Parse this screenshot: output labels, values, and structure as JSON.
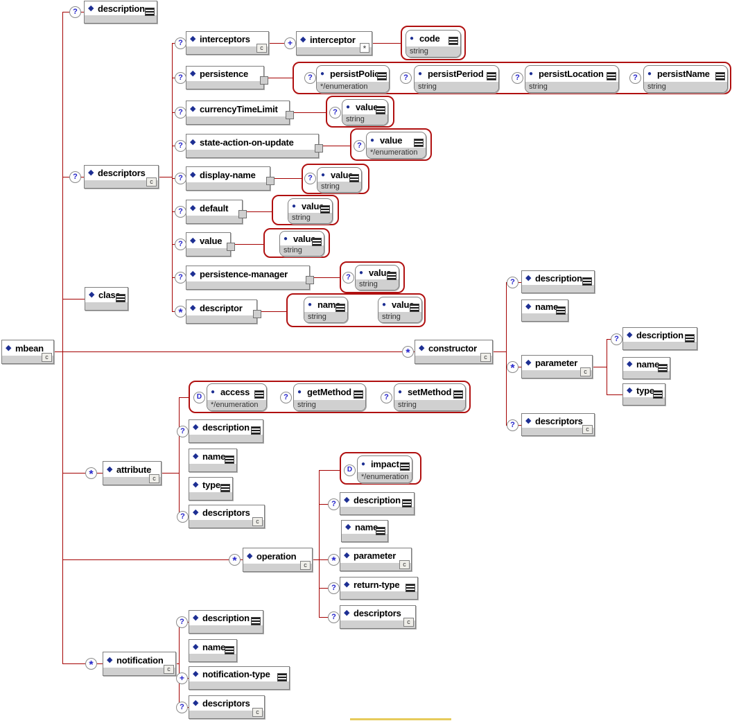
{
  "colors": {
    "connector_line": "#a40000",
    "group_border": "#b01010",
    "node_band": "#d0d0d0",
    "icon_blue": "#1d2f93",
    "occurrence_glyph": "#2424cc",
    "highlight": "#e7cb5a"
  },
  "nodes": [
    {
      "id": "mbean",
      "label": "mbean",
      "kind": "element",
      "parent": null,
      "icons": [
        "complex-content"
      ]
    },
    {
      "id": "description",
      "label": "description",
      "kind": "element",
      "parent": "mbean",
      "occurrence": "?",
      "icons": [
        "annotation"
      ]
    },
    {
      "id": "descriptors",
      "label": "descriptors",
      "kind": "element",
      "parent": "mbean",
      "occurrence": "?",
      "icons": [
        "complex-content"
      ]
    },
    {
      "id": "class",
      "label": "class",
      "kind": "element",
      "parent": "mbean",
      "icons": [
        "annotation"
      ]
    },
    {
      "id": "constructor",
      "label": "constructor",
      "kind": "element",
      "parent": "mbean",
      "occurrence": "*",
      "icons": [
        "complex-content"
      ]
    },
    {
      "id": "attribute",
      "label": "attribute",
      "kind": "element",
      "parent": "mbean",
      "occurrence": "*",
      "icons": [
        "complex-content"
      ]
    },
    {
      "id": "operation",
      "label": "operation",
      "kind": "element",
      "parent": "mbean",
      "occurrence": "*",
      "icons": [
        "complex-content"
      ]
    },
    {
      "id": "notification",
      "label": "notification",
      "kind": "element",
      "parent": "mbean",
      "occurrence": "*",
      "icons": [
        "complex-content"
      ]
    },
    {
      "id": "interceptors",
      "label": "interceptors",
      "kind": "element",
      "parent": "descriptors",
      "occurrence": "?",
      "icons": [
        "complex-content"
      ]
    },
    {
      "id": "interceptor",
      "label": "interceptor",
      "kind": "element",
      "parent": "interceptors",
      "occurrence": "+",
      "icons": [
        "reference"
      ]
    },
    {
      "id": "code",
      "label": "code",
      "kind": "attribute",
      "datatype": "string",
      "parent": "interceptor",
      "icons": [
        "annotation"
      ]
    },
    {
      "id": "persistence",
      "label": "persistence",
      "kind": "element",
      "parent": "descriptors",
      "occurrence": "?",
      "handle": true
    },
    {
      "id": "persistPolicy",
      "label": "persistPolicy",
      "kind": "attribute",
      "datatype": "*/enumeration",
      "parent": "persistence",
      "occurrence": "?",
      "icons": [
        "annotation"
      ]
    },
    {
      "id": "persistPeriod",
      "label": "persistPeriod",
      "kind": "attribute",
      "datatype": "string",
      "parent": "persistence",
      "occurrence": "?",
      "icons": [
        "annotation"
      ]
    },
    {
      "id": "persistLocation",
      "label": "persistLocation",
      "kind": "attribute",
      "datatype": "string",
      "parent": "persistence",
      "occurrence": "?",
      "icons": [
        "annotation"
      ]
    },
    {
      "id": "persistName",
      "label": "persistName",
      "kind": "attribute",
      "datatype": "string",
      "parent": "persistence",
      "occurrence": "?",
      "icons": [
        "annotation"
      ]
    },
    {
      "id": "currencyTimeLimit",
      "label": "currencyTimeLimit",
      "kind": "element",
      "parent": "descriptors",
      "occurrence": "?",
      "handle": true
    },
    {
      "id": "currencyTimeLimit-value",
      "label": "value",
      "kind": "attribute",
      "datatype": "string",
      "parent": "currencyTimeLimit",
      "occurrence": "?",
      "icons": [
        "annotation"
      ]
    },
    {
      "id": "state-action-on-update",
      "label": "state-action-on-update",
      "kind": "element",
      "parent": "descriptors",
      "occurrence": "?",
      "handle": true
    },
    {
      "id": "state-action-value",
      "label": "value",
      "kind": "attribute",
      "datatype": "*/enumeration",
      "parent": "state-action-on-update",
      "occurrence": "?",
      "icons": [
        "annotation"
      ]
    },
    {
      "id": "display-name",
      "label": "display-name",
      "kind": "element",
      "parent": "descriptors",
      "occurrence": "?",
      "handle": true
    },
    {
      "id": "display-name-value",
      "label": "value",
      "kind": "attribute",
      "datatype": "string",
      "parent": "display-name",
      "occurrence": "?",
      "icons": [
        "annotation"
      ]
    },
    {
      "id": "default",
      "label": "default",
      "kind": "element",
      "parent": "descriptors",
      "occurrence": "?",
      "handle": true
    },
    {
      "id": "default-value",
      "label": "value",
      "kind": "attribute",
      "datatype": "string",
      "parent": "default",
      "icons": [
        "annotation"
      ]
    },
    {
      "id": "value",
      "label": "value",
      "kind": "element",
      "parent": "descriptors",
      "occurrence": "?",
      "handle": true
    },
    {
      "id": "value-value",
      "label": "value",
      "kind": "attribute",
      "datatype": "string",
      "parent": "value",
      "icons": [
        "annotation"
      ]
    },
    {
      "id": "persistence-manager",
      "label": "persistence-manager",
      "kind": "element",
      "parent": "descriptors",
      "occurrence": "?",
      "handle": true
    },
    {
      "id": "persistence-manager-value",
      "label": "value",
      "kind": "attribute",
      "datatype": "string",
      "parent": "persistence-manager",
      "occurrence": "?",
      "icons": [
        "annotation"
      ]
    },
    {
      "id": "descriptor",
      "label": "descriptor",
      "kind": "element",
      "parent": "descriptors",
      "occurrence": "*",
      "handle": true
    },
    {
      "id": "descriptor-name",
      "label": "name",
      "kind": "attribute",
      "datatype": "string",
      "parent": "descriptor",
      "icons": [
        "annotation"
      ]
    },
    {
      "id": "descriptor-value",
      "label": "value",
      "kind": "attribute",
      "datatype": "string",
      "parent": "descriptor",
      "icons": [
        "annotation"
      ]
    },
    {
      "id": "constructor-description",
      "label": "description",
      "kind": "element",
      "parent": "constructor",
      "occurrence": "?",
      "icons": [
        "annotation"
      ]
    },
    {
      "id": "constructor-name",
      "label": "name",
      "kind": "element",
      "parent": "constructor",
      "icons": [
        "annotation"
      ]
    },
    {
      "id": "parameter",
      "label": "parameter",
      "kind": "element",
      "parent": "constructor",
      "occurrence": "*",
      "icons": [
        "complex-content"
      ]
    },
    {
      "id": "parameter-description",
      "label": "description",
      "kind": "element",
      "parent": "parameter",
      "occurrence": "?",
      "icons": [
        "annotation"
      ]
    },
    {
      "id": "parameter-name",
      "label": "name",
      "kind": "element",
      "parent": "parameter",
      "icons": [
        "annotation"
      ]
    },
    {
      "id": "parameter-type",
      "label": "type",
      "kind": "element",
      "parent": "parameter",
      "icons": [
        "annotation"
      ]
    },
    {
      "id": "constructor-descriptors",
      "label": "descriptors",
      "kind": "element",
      "parent": "constructor",
      "occurrence": "?",
      "icons": [
        "complex-content"
      ]
    },
    {
      "id": "access",
      "label": "access",
      "kind": "attribute",
      "datatype": "*/enumeration",
      "parent": "attribute",
      "occurrence": "D",
      "icons": [
        "annotation"
      ]
    },
    {
      "id": "getMethod",
      "label": "getMethod",
      "kind": "attribute",
      "datatype": "string",
      "parent": "attribute",
      "occurrence": "?",
      "icons": [
        "annotation"
      ]
    },
    {
      "id": "setMethod",
      "label": "setMethod",
      "kind": "attribute",
      "datatype": "string",
      "parent": "attribute",
      "occurrence": "?",
      "icons": [
        "annotation"
      ]
    },
    {
      "id": "attribute-description",
      "label": "description",
      "kind": "element",
      "parent": "attribute",
      "occurrence": "?",
      "icons": [
        "annotation"
      ]
    },
    {
      "id": "attribute-name",
      "label": "name",
      "kind": "element",
      "parent": "attribute",
      "icons": [
        "annotation"
      ]
    },
    {
      "id": "attribute-type",
      "label": "type",
      "kind": "element",
      "parent": "attribute",
      "icons": [
        "annotation"
      ]
    },
    {
      "id": "attribute-descriptors",
      "label": "descriptors",
      "kind": "element",
      "parent": "attribute",
      "occurrence": "?",
      "icons": [
        "complex-content"
      ]
    },
    {
      "id": "impact",
      "label": "impact",
      "kind": "attribute",
      "datatype": "*/enumeration",
      "parent": "operation",
      "occurrence": "D",
      "icons": [
        "annotation"
      ]
    },
    {
      "id": "operation-description",
      "label": "description",
      "kind": "element",
      "parent": "operation",
      "occurrence": "?",
      "icons": [
        "annotation"
      ]
    },
    {
      "id": "operation-name",
      "label": "name",
      "kind": "element",
      "parent": "operation",
      "icons": [
        "annotation"
      ]
    },
    {
      "id": "operation-parameter",
      "label": "parameter",
      "kind": "element",
      "parent": "operation",
      "occurrence": "*",
      "icons": [
        "complex-content"
      ]
    },
    {
      "id": "return-type",
      "label": "return-type",
      "kind": "element",
      "parent": "operation",
      "occurrence": "?",
      "icons": [
        "annotation"
      ]
    },
    {
      "id": "operation-descriptors",
      "label": "descriptors",
      "kind": "element",
      "parent": "operation",
      "occurrence": "?",
      "icons": [
        "complex-content"
      ]
    },
    {
      "id": "notification-description",
      "label": "description",
      "kind": "element",
      "parent": "notification",
      "occurrence": "?",
      "icons": [
        "annotation"
      ]
    },
    {
      "id": "notification-name",
      "label": "name",
      "kind": "element",
      "parent": "notification",
      "icons": [
        "annotation"
      ]
    },
    {
      "id": "notification-type",
      "label": "notification-type",
      "kind": "element",
      "parent": "notification",
      "occurrence": "+",
      "icons": [
        "annotation"
      ]
    },
    {
      "id": "notification-descriptors",
      "label": "descriptors",
      "kind": "element",
      "parent": "notification",
      "occurrence": "?",
      "icons": [
        "complex-content"
      ]
    }
  ]
}
